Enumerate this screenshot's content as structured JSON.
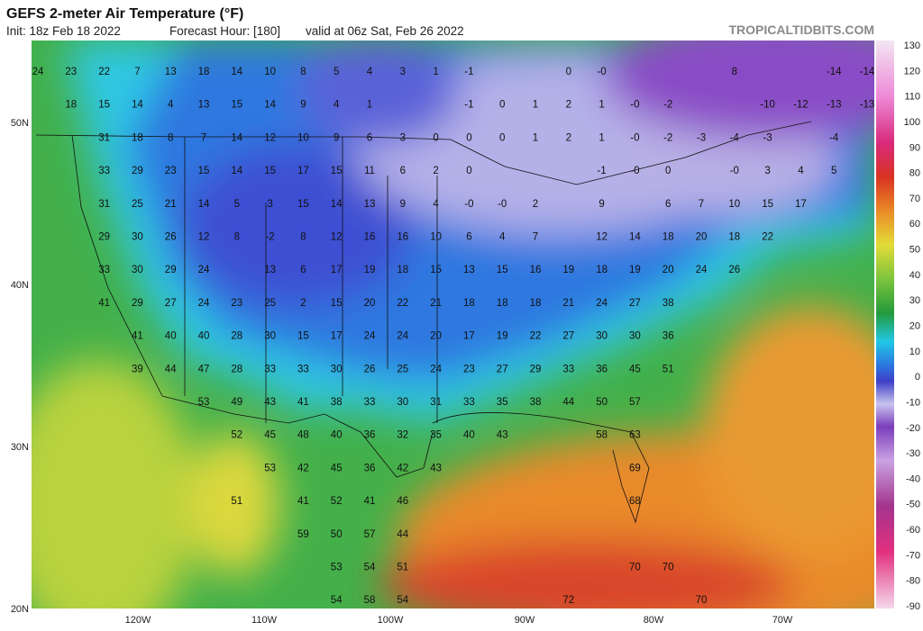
{
  "header": {
    "title": "GEFS 2-meter Air Temperature (°F)",
    "init": "Init: 18z Feb 18 2022",
    "forecast_hour": "Forecast Hour: [180]",
    "valid": "valid at 06z Sat, Feb 26 2022",
    "brand": "TROPICALTIDBITS.COM"
  },
  "axes": {
    "lat": [
      "50N",
      "40N",
      "30N",
      "20N"
    ],
    "lon": [
      "120W",
      "110W",
      "100W",
      "90W",
      "80W",
      "70W"
    ]
  },
  "colorbar": {
    "ticks": [
      130,
      120,
      110,
      100,
      90,
      80,
      70,
      60,
      50,
      40,
      30,
      20,
      10,
      0,
      -10,
      -20,
      -30,
      -40,
      -50,
      -60,
      -70,
      -80,
      -90
    ]
  },
  "grid": {
    "rows": [
      [
        24,
        23,
        22,
        7,
        13,
        18,
        14,
        10,
        8,
        5,
        4,
        3,
        1,
        -1,
        null,
        null,
        0,
        "-0",
        null,
        null,
        null,
        8,
        null,
        null,
        -14,
        -14
      ],
      [
        null,
        18,
        15,
        14,
        4,
        13,
        15,
        14,
        9,
        4,
        1,
        null,
        null,
        -1,
        0,
        1,
        2,
        1,
        "-0",
        -2,
        null,
        null,
        -10,
        -12,
        -13,
        -13
      ],
      [
        null,
        null,
        31,
        18,
        8,
        7,
        14,
        12,
        10,
        9,
        6,
        3,
        0,
        0,
        0,
        1,
        2,
        1,
        "-0",
        -2,
        -3,
        -4,
        -3,
        null,
        -4,
        null
      ],
      [
        null,
        null,
        33,
        29,
        23,
        15,
        14,
        15,
        17,
        15,
        11,
        6,
        2,
        0,
        null,
        null,
        null,
        -1,
        "-0",
        0,
        null,
        "-0",
        3,
        4,
        5,
        null
      ],
      [
        null,
        null,
        31,
        25,
        21,
        14,
        5,
        3,
        15,
        14,
        13,
        9,
        4,
        "-0",
        "-0",
        2,
        null,
        9,
        null,
        6,
        7,
        10,
        15,
        17,
        null,
        null
      ],
      [
        null,
        null,
        29,
        30,
        26,
        12,
        8,
        -2,
        8,
        12,
        16,
        16,
        10,
        6,
        4,
        7,
        null,
        12,
        14,
        18,
        20,
        18,
        22,
        null,
        null,
        null
      ],
      [
        null,
        null,
        33,
        30,
        29,
        24,
        null,
        13,
        6,
        17,
        19,
        18,
        15,
        13,
        15,
        16,
        19,
        18,
        19,
        20,
        24,
        26,
        null,
        null,
        null,
        null
      ],
      [
        null,
        null,
        41,
        29,
        27,
        24,
        23,
        25,
        2,
        15,
        20,
        22,
        21,
        18,
        18,
        18,
        21,
        24,
        27,
        38,
        null,
        null,
        null,
        null,
        null,
        null
      ],
      [
        null,
        null,
        null,
        41,
        40,
        40,
        28,
        30,
        15,
        17,
        24,
        24,
        20,
        17,
        19,
        22,
        27,
        30,
        30,
        36,
        null,
        null,
        null,
        null,
        null,
        null
      ],
      [
        null,
        null,
        null,
        39,
        44,
        47,
        28,
        33,
        33,
        30,
        26,
        25,
        24,
        23,
        27,
        29,
        33,
        36,
        45,
        51,
        null,
        null,
        null,
        null,
        null,
        null
      ],
      [
        null,
        null,
        null,
        null,
        null,
        53,
        49,
        43,
        41,
        38,
        33,
        30,
        31,
        33,
        35,
        38,
        44,
        50,
        57,
        null,
        null,
        null,
        null,
        null,
        null,
        null
      ],
      [
        null,
        null,
        null,
        null,
        null,
        null,
        52,
        45,
        48,
        40,
        36,
        32,
        35,
        40,
        43,
        null,
        null,
        58,
        63,
        null,
        null,
        null,
        null,
        null,
        null,
        null
      ],
      [
        null,
        null,
        null,
        null,
        null,
        null,
        null,
        53,
        42,
        45,
        36,
        42,
        43,
        null,
        null,
        null,
        null,
        null,
        69,
        null,
        null,
        null,
        null,
        null,
        null,
        null
      ],
      [
        null,
        null,
        null,
        null,
        null,
        null,
        51,
        null,
        41,
        52,
        41,
        46,
        null,
        null,
        null,
        null,
        null,
        null,
        68,
        null,
        null,
        null,
        null,
        null,
        null,
        null
      ],
      [
        null,
        null,
        null,
        null,
        null,
        null,
        null,
        null,
        59,
        50,
        57,
        44,
        null,
        null,
        null,
        null,
        null,
        null,
        null,
        null,
        null,
        null,
        null,
        null,
        null,
        null
      ],
      [
        null,
        null,
        null,
        null,
        null,
        null,
        null,
        null,
        null,
        53,
        54,
        51,
        null,
        null,
        null,
        null,
        null,
        null,
        70,
        70,
        null,
        null,
        null,
        null,
        null,
        null
      ],
      [
        null,
        null,
        null,
        null,
        null,
        null,
        null,
        null,
        null,
        54,
        58,
        54,
        null,
        null,
        null,
        null,
        72,
        null,
        null,
        null,
        70,
        null,
        null,
        null,
        null,
        null
      ]
    ]
  }
}
